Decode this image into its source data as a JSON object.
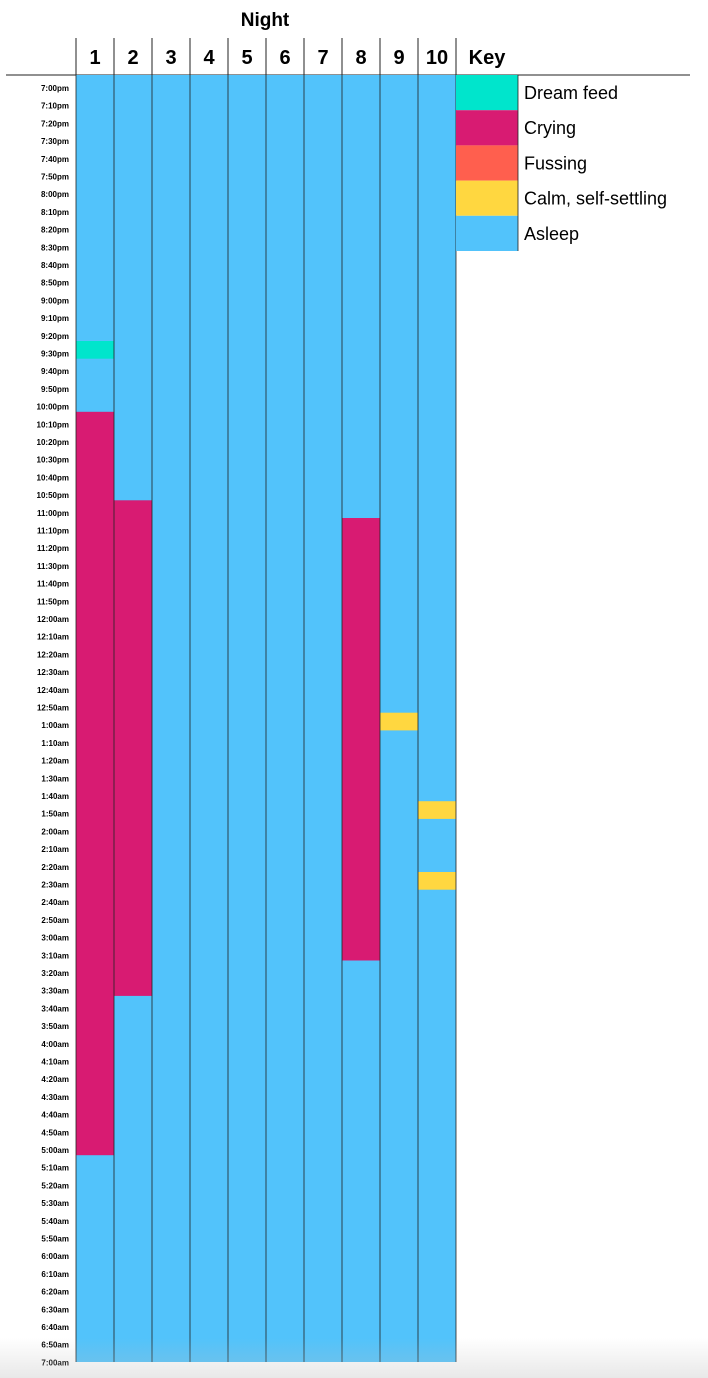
{
  "chart_data": {
    "type": "heatmap",
    "title": "Night",
    "nights": [
      "1",
      "2",
      "3",
      "4",
      "5",
      "6",
      "7",
      "8",
      "9",
      "10"
    ],
    "key_header": "Key",
    "time_labels": [
      "7:00pm",
      "7:10pm",
      "7:20pm",
      "7:30pm",
      "7:40pm",
      "7:50pm",
      "8:00pm",
      "8:10pm",
      "8:20pm",
      "8:30pm",
      "8:40pm",
      "8:50pm",
      "9:00pm",
      "9:10pm",
      "9:20pm",
      "9:30pm",
      "9:40pm",
      "9:50pm",
      "10:00pm",
      "10:10pm",
      "10:20pm",
      "10:30pm",
      "10:40pm",
      "10:50pm",
      "11:00pm",
      "11:10pm",
      "11:20pm",
      "11:30pm",
      "11:40pm",
      "11:50pm",
      "12:00am",
      "12:10am",
      "12:20am",
      "12:30am",
      "12:40am",
      "12:50am",
      "1:00am",
      "1:10am",
      "1:20am",
      "1:30am",
      "1:40am",
      "1:50am",
      "2:00am",
      "2:10am",
      "2:20am",
      "2:30am",
      "2:40am",
      "2:50am",
      "3:00am",
      "3:10am",
      "3:20am",
      "3:30am",
      "3:40am",
      "3:50am",
      "4:00am",
      "4:10am",
      "4:20am",
      "4:30am",
      "4:40am",
      "4:50am",
      "5:00am",
      "5:10am",
      "5:20am",
      "5:30am",
      "5:40am",
      "5:50am",
      "6:00am",
      "6:10am",
      "6:20am",
      "6:30am",
      "6:40am",
      "6:50am",
      "7:00am"
    ],
    "legend": [
      {
        "state": "Dream feed",
        "color": "#00E5CC"
      },
      {
        "state": "Crying",
        "color": "#D81B72"
      },
      {
        "state": "Fussing",
        "color": "#FF5F4E"
      },
      {
        "state": "Calm, self-settling",
        "color": "#FFD740"
      },
      {
        "state": "Asleep",
        "color": "#52C3FB"
      }
    ],
    "default_state": "Asleep",
    "events": [
      {
        "night": "1",
        "state": "Dream feed",
        "start": "9:30pm",
        "end": "9:40pm"
      },
      {
        "night": "1",
        "state": "Crying",
        "start": "10:10pm",
        "end": "5:10am"
      },
      {
        "night": "2",
        "state": "Crying",
        "start": "11:00pm",
        "end": "3:40am"
      },
      {
        "night": "8",
        "state": "Crying",
        "start": "11:10pm",
        "end": "3:20am"
      },
      {
        "night": "9",
        "state": "Calm, self-settling",
        "start": "1:00am",
        "end": "1:10am"
      },
      {
        "night": "10",
        "state": "Calm, self-settling",
        "start": "1:50am",
        "end": "2:00am"
      },
      {
        "night": "10",
        "state": "Calm, self-settling",
        "start": "2:30am",
        "end": "2:40am"
      }
    ]
  }
}
